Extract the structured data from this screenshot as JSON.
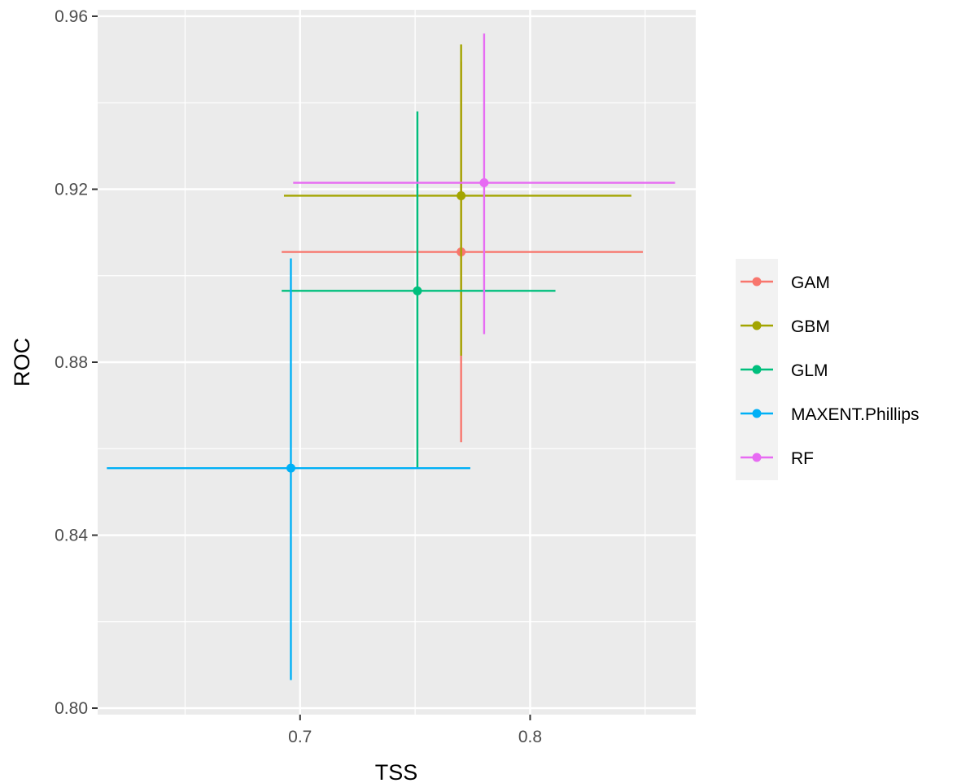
{
  "chart_data": {
    "type": "scatter",
    "title": "",
    "xlabel": "TSS",
    "ylabel": "ROC",
    "xlim": [
      0.612,
      0.872
    ],
    "ylim": [
      0.7985,
      0.9615
    ],
    "x_ticks": [
      0.7,
      0.8
    ],
    "x_tick_labels": [
      "0.7",
      "0.8"
    ],
    "x_minor_ticks": [
      0.65,
      0.75,
      0.85
    ],
    "y_ticks": [
      0.8,
      0.84,
      0.88,
      0.92,
      0.96
    ],
    "y_tick_labels": [
      "0.80",
      "0.84",
      "0.88",
      "0.92",
      "0.96"
    ],
    "y_minor_ticks": [
      0.82,
      0.86,
      0.9,
      0.94
    ],
    "grid": true,
    "legend_position": "right",
    "error_bars": "crosshair (horizontal and vertical ranges)",
    "series": [
      {
        "name": "GAM",
        "color": "#F8766D",
        "x": 0.77,
        "y": 0.9055,
        "x_range": [
          0.692,
          0.849
        ],
        "y_range": [
          0.8615,
          0.9495
        ]
      },
      {
        "name": "GBM",
        "color": "#A3A500",
        "x": 0.77,
        "y": 0.9185,
        "x_range": [
          0.693,
          0.844
        ],
        "y_range": [
          0.8815,
          0.9535
        ]
      },
      {
        "name": "GLM",
        "color": "#00BF7D",
        "x": 0.751,
        "y": 0.8965,
        "x_range": [
          0.692,
          0.811
        ],
        "y_range": [
          0.8555,
          0.938
        ]
      },
      {
        "name": "MAXENT.Phillips",
        "color": "#00B0F6",
        "x": 0.696,
        "y": 0.8555,
        "x_range": [
          0.616,
          0.774
        ],
        "y_range": [
          0.8065,
          0.904
        ]
      },
      {
        "name": "RF",
        "color": "#E76BF3",
        "x": 0.78,
        "y": 0.9215,
        "x_range": [
          0.697,
          0.863
        ],
        "y_range": [
          0.8865,
          0.956
        ]
      }
    ]
  }
}
